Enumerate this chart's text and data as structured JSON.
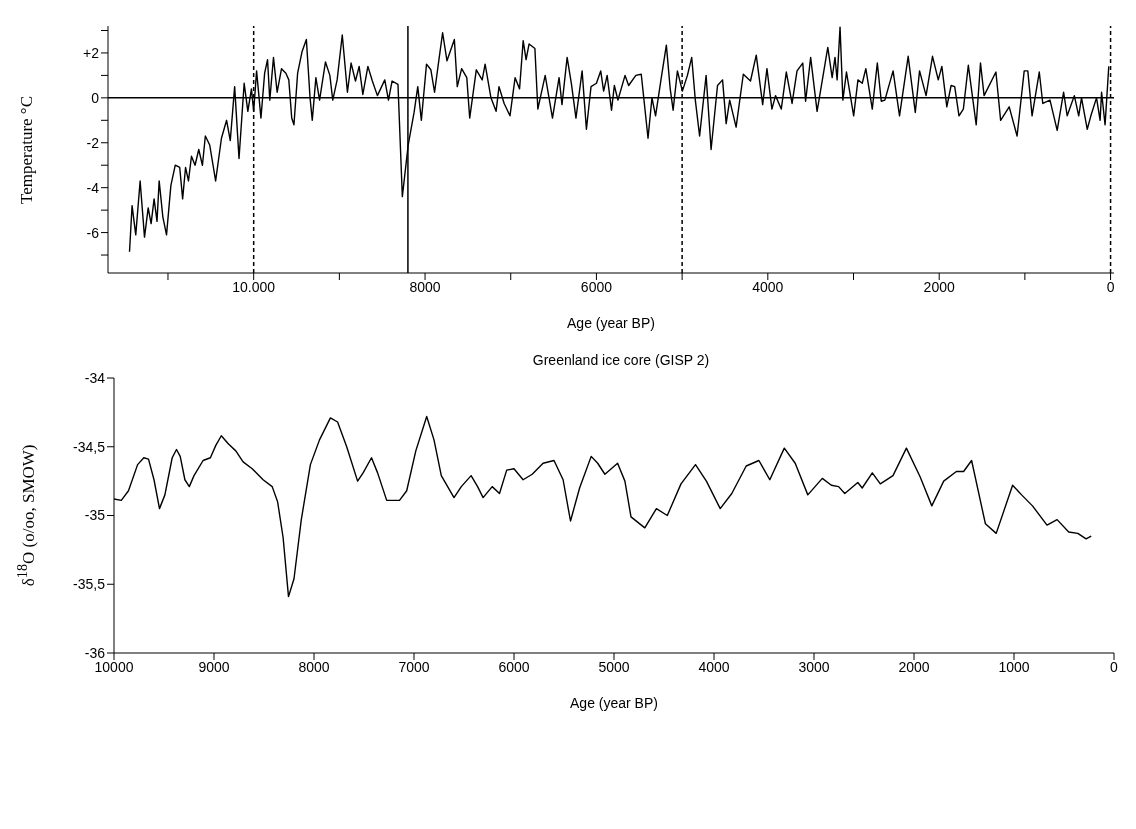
{
  "chart_data": [
    {
      "type": "line",
      "xlabel": "Age (year BP)",
      "ylabel": "Temperature °C",
      "xlim": [
        11700,
        -40
      ],
      "ylim": [
        -7.8,
        3.2
      ],
      "xticks": [
        {
          "value": 11000,
          "label": null
        },
        {
          "value": 10000,
          "label": "10.000"
        },
        {
          "value": 9000,
          "label": null
        },
        8000,
        {
          "value": 7000,
          "label": null
        },
        6000,
        {
          "value": 5000,
          "label": null
        },
        4000,
        {
          "value": 3000,
          "label": null
        },
        2000,
        {
          "value": 1000,
          "label": null
        },
        0
      ],
      "yticks": [
        {
          "value": 3,
          "label": null
        },
        {
          "value": 2,
          "label": "+2"
        },
        {
          "value": 1,
          "label": null
        },
        0,
        {
          "value": -1,
          "label": null
        },
        -2,
        {
          "value": -3,
          "label": null
        },
        -4,
        {
          "value": -5,
          "label": null
        },
        -6,
        {
          "value": -7,
          "label": null
        }
      ],
      "ref_lines": [
        {
          "axis": "y",
          "value": 0,
          "line_style": "solid"
        },
        {
          "axis": "x",
          "value": 10000,
          "line_style": "dashed"
        },
        {
          "axis": "x",
          "value": 8200,
          "line_style": "solid"
        },
        {
          "axis": "x",
          "value": 5000,
          "line_style": "dashed"
        },
        {
          "axis": "x",
          "value": 0,
          "line_style": "dashed"
        }
      ],
      "series": [
        {
          "color": "#000000",
          "x": [
            11449,
            11419,
            11376,
            11325,
            11274,
            11231,
            11197,
            11162,
            11128,
            11103,
            11060,
            11017,
            10966,
            10915,
            10863,
            10829,
            10795,
            10761,
            10726,
            10684,
            10641,
            10598,
            10564,
            10513,
            10444,
            10376,
            10316,
            10273,
            10222,
            10171,
            10111,
            10068,
            10026,
            10000,
            9966,
            9915,
            9872,
            9838,
            9812,
            9769,
            9726,
            9675,
            9624,
            9590,
            9556,
            9530,
            9487,
            9436,
            9385,
            9342,
            9316,
            9274,
            9231,
            9162,
            9111,
            9077,
            9026,
            8966,
            8906,
            8863,
            8812,
            8769,
            8726,
            8667,
            8615,
            8556,
            8470,
            8427,
            8385,
            8316,
            8265,
            8197,
            8128,
            8085,
            8043,
            7983,
            7932,
            7889,
            7838,
            7795,
            7744,
            7658,
            7624,
            7573,
            7513,
            7479,
            7402,
            7333,
            7299,
            7231,
            7171,
            7137,
            7077,
            7009,
            6949,
            6897,
            6855,
            6821,
            6786,
            6718,
            6684,
            6598,
            6513,
            6436,
            6402,
            6342,
            6291,
            6239,
            6167,
            6117,
            6063,
            6000,
            5950,
            5916,
            5875,
            5824,
            5791,
            5749,
            5666,
            5624,
            5540,
            5477,
            5456,
            5398,
            5352,
            5310,
            5247,
            5184,
            5139,
            5105,
            5055,
            4997,
            4938,
            4888,
            4846,
            4796,
            4720,
            4662,
            4587,
            4528,
            4486,
            4445,
            4370,
            4286,
            4202,
            4135,
            4060,
            4010,
            3952,
            3910,
            3843,
            3784,
            3717,
            3659,
            3592,
            3559,
            3500,
            3425,
            3300,
            3249,
            3216,
            3191,
            3157,
            3124,
            3082,
            2998,
            2948,
            2898,
            2856,
            2781,
            2722,
            2676,
            2634,
            2538,
            2463,
            2362,
            2279,
            2229,
            2153,
            2078,
            2011,
            1969,
            1911,
            1861,
            1819,
            1769,
            1718,
            1660,
            1568,
            1518,
            1476,
            1338,
            1283,
            1183,
            1091,
            1008,
            966,
            916,
            832,
            791,
            707,
            623,
            548,
            506,
            423,
            372,
            339,
            272,
            230,
            164,
            122,
            105,
            64,
            21
          ],
          "values": [
            -6.85,
            -4.8,
            -6.1,
            -3.7,
            -6.2,
            -4.9,
            -5.6,
            -4.5,
            -5.5,
            -3.7,
            -5.3,
            -6.1,
            -3.9,
            -3.0,
            -3.1,
            -4.5,
            -3.1,
            -3.7,
            -2.6,
            -3.0,
            -2.3,
            -3.0,
            -1.7,
            -2.1,
            -3.7,
            -1.8,
            -1.0,
            -1.9,
            0.5,
            -2.7,
            0.65,
            -0.6,
            0.4,
            -0.6,
            1.2,
            -0.9,
            1.1,
            1.7,
            -0.1,
            1.8,
            0.25,
            1.3,
            1.1,
            0.8,
            -0.9,
            -1.2,
            1.1,
            2.05,
            2.6,
            0,
            -1.0,
            0.9,
            -0.1,
            1.6,
            1.0,
            -0.1,
            0.8,
            2.8,
            0.25,
            1.55,
            0.75,
            1.4,
            0.15,
            1.4,
            0.75,
            0.1,
            0.8,
            -0.1,
            0.75,
            0.6,
            -4.4,
            -2.1,
            -0.65,
            0.5,
            -1.0,
            1.5,
            1.25,
            0.25,
            1.7,
            2.9,
            1.65,
            2.6,
            0.5,
            1.3,
            0.9,
            -0.9,
            1.25,
            0.8,
            1.5,
            0,
            -0.6,
            0.5,
            -0.25,
            -0.8,
            0.9,
            0.4,
            2.55,
            1.7,
            2.4,
            2.2,
            -0.5,
            1.0,
            -0.9,
            0.9,
            -0.3,
            1.8,
            0.6,
            -0.9,
            1.2,
            -1.4,
            0.5,
            0.65,
            1.2,
            0.3,
            1.0,
            -0.55,
            0.55,
            -0.1,
            1.0,
            0.55,
            1.0,
            1.05,
            0.3,
            -1.8,
            0,
            -0.8,
            0.8,
            2.35,
            0.4,
            -0.55,
            1.2,
            0.3,
            1.0,
            1.8,
            -0.1,
            -1.7,
            1.0,
            -2.3,
            0.55,
            0.8,
            -1.15,
            -0.1,
            -1.3,
            1.05,
            0.75,
            1.9,
            -0.3,
            1.3,
            -0.5,
            0.1,
            -0.5,
            1.15,
            -0.25,
            1.2,
            1.55,
            -0.15,
            1.8,
            -0.6,
            2.25,
            0.9,
            1.8,
            0.8,
            3.15,
            -0.1,
            1.15,
            -0.8,
            0.8,
            0.65,
            1.3,
            -0.5,
            1.55,
            -0.15,
            -0.1,
            1.2,
            -0.8,
            1.85,
            -0.65,
            1.2,
            0.1,
            1.85,
            0.8,
            1.4,
            -0.4,
            0.55,
            0.5,
            -0.8,
            -0.5,
            1.45,
            -1.2,
            1.55,
            0.1,
            1.15,
            -1.0,
            -0.4,
            -1.7,
            1.2,
            1.2,
            -0.8,
            1.15,
            -0.25,
            -0.1,
            -1.45,
            0.25,
            -0.8,
            0.1,
            -0.8,
            0,
            -1.4,
            -0.8,
            0,
            -1.0,
            0.25,
            -1.2,
            1.4
          ]
        }
      ]
    },
    {
      "type": "line",
      "title": "Greenland ice core (GISP 2)",
      "xlabel": "Age (year BP)",
      "ylabel": "δ$^{18}$O (o/oo, SMOW)",
      "xlim": [
        10000,
        0
      ],
      "ylim": [
        -36,
        -34
      ],
      "xticks": [
        10000,
        9000,
        8000,
        7000,
        6000,
        5000,
        4000,
        3000,
        2000,
        1000,
        0
      ],
      "yticks": [
        -34,
        {
          "value": -34.5,
          "label": "-34,5"
        },
        -35,
        {
          "value": -35.5,
          "label": "-35,5"
        },
        -36
      ],
      "series": [
        {
          "color": "#000000",
          "x": [
            10000,
            9927,
            9855,
            9764,
            9702,
            9655,
            9600,
            9545,
            9491,
            9418,
            9375,
            9338,
            9291,
            9247,
            9200,
            9109,
            9036,
            8982,
            8927,
            8855,
            8782,
            8709,
            8618,
            8509,
            8418,
            8364,
            8309,
            8255,
            8200,
            8127,
            8036,
            7945,
            7836,
            7764,
            7673,
            7564,
            7509,
            7425,
            7364,
            7273,
            7145,
            7073,
            6982,
            6873,
            6800,
            6727,
            6600,
            6527,
            6429,
            6364,
            6309,
            6218,
            6145,
            6073,
            6000,
            5909,
            5818,
            5709,
            5600,
            5509,
            5435,
            5344,
            5228,
            5163,
            5091,
            4964,
            4891,
            4830,
            4692,
            4576,
            4467,
            4330,
            4185,
            4076,
            3938,
            3822,
            3678,
            3551,
            3442,
            3297,
            3188,
            3062,
            2917,
            2826,
            2754,
            2692,
            2562,
            2518,
            2417,
            2337,
            2210,
            2076,
            1938,
            1822,
            1703,
            1576,
            1504,
            1424,
            1286,
            1178,
            1014,
            924,
            815,
            670,
            569,
            453,
            362,
            279,
            228
          ],
          "values": [
            -34.88,
            -34.89,
            -34.82,
            -34.63,
            -34.58,
            -34.59,
            -34.74,
            -34.95,
            -34.85,
            -34.58,
            -34.52,
            -34.57,
            -34.74,
            -34.79,
            -34.71,
            -34.6,
            -34.58,
            -34.49,
            -34.42,
            -34.48,
            -34.53,
            -34.61,
            -34.66,
            -34.74,
            -34.79,
            -34.9,
            -35.16,
            -35.59,
            -35.46,
            -35.03,
            -34.63,
            -34.45,
            -34.29,
            -34.32,
            -34.5,
            -34.75,
            -34.69,
            -34.58,
            -34.69,
            -34.89,
            -34.89,
            -34.82,
            -34.53,
            -34.28,
            -34.45,
            -34.71,
            -34.87,
            -34.79,
            -34.71,
            -34.79,
            -34.87,
            -34.79,
            -34.84,
            -34.67,
            -34.66,
            -34.74,
            -34.7,
            -34.62,
            -34.6,
            -34.74,
            -35.04,
            -34.8,
            -34.57,
            -34.62,
            -34.7,
            -34.62,
            -34.75,
            -35.01,
            -35.09,
            -34.95,
            -35.0,
            -34.77,
            -34.63,
            -34.75,
            -34.95,
            -34.84,
            -34.64,
            -34.6,
            -34.74,
            -34.51,
            -34.62,
            -34.85,
            -34.73,
            -34.78,
            -34.79,
            -34.84,
            -34.76,
            -34.8,
            -34.69,
            -34.77,
            -34.71,
            -34.51,
            -34.72,
            -34.93,
            -34.75,
            -34.68,
            -34.68,
            -34.6,
            -35.06,
            -35.13,
            -34.78,
            -34.85,
            -34.93,
            -35.07,
            -35.03,
            -35.12,
            -35.13,
            -35.17,
            -35.15
          ]
        }
      ]
    }
  ]
}
